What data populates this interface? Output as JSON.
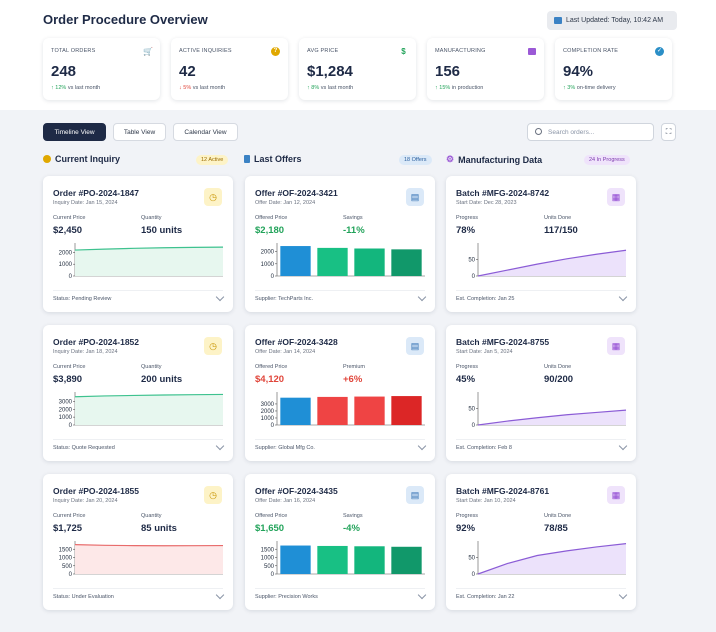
{
  "header": {
    "title": "Order Procedure Overview",
    "last_updated": "Last Updated: Today, 10:42 AM"
  },
  "kpis": [
    {
      "label": "TOTAL ORDERS",
      "value": "248",
      "change": "12%",
      "change_text": "vs last month",
      "direction": "up",
      "icon": "cart-icon",
      "icon_color": "#3b82c4"
    },
    {
      "label": "ACTIVE INQUIRIES",
      "value": "42",
      "change": "5%",
      "change_text": "vs last month",
      "direction": "down",
      "icon": "question-icon",
      "icon_color": "#e0a800"
    },
    {
      "label": "AVG PRICE",
      "value": "$1,284",
      "change": "8%",
      "change_text": "vs last month",
      "direction": "up",
      "icon": "dollar-icon",
      "icon_color": "#22a35a"
    },
    {
      "label": "MANUFACTURING",
      "value": "156",
      "change": "15%",
      "change_text": "in production",
      "direction": "up",
      "icon": "factory-icon",
      "icon_color": "#9b59d6"
    },
    {
      "label": "COMPLETION RATE",
      "value": "94%",
      "change": "3%",
      "change_text": "on-time delivery",
      "direction": "up",
      "icon": "check-circle-icon",
      "icon_color": "#2b8fc7"
    }
  ],
  "toolbar": {
    "views": [
      "Timeline View",
      "Table View",
      "Calendar View"
    ],
    "search_placeholder": "Search orders...",
    "expand_icon": "expand-icon"
  },
  "columns": [
    {
      "title": "Current Inquiry",
      "badge": "12 Active",
      "badge_bg": "#fdf3c7",
      "badge_color": "#9a6b00",
      "cards": [
        {
          "title": "Order #PO-2024-1847",
          "subtitle": "Inquiry Date: Jan 15, 2024",
          "m1_label": "Current Price",
          "m1_value": "$2,450",
          "m2_label": "Quantity",
          "m2_value": "150 units",
          "footer": "Status: Pending Review",
          "chart": {
            "type": "area",
            "ticks": [
              "2000",
              "1000",
              "0"
            ],
            "tick_values": [
              2000,
              1000,
              0
            ],
            "ymax": 2800,
            "values": [
              2200,
              2280,
              2350,
              2400,
              2430,
              2450
            ],
            "color": "#3ec28f",
            "fill": "#e7f7ef"
          }
        },
        {
          "title": "Order #PO-2024-1852",
          "subtitle": "Inquiry Date: Jan 18, 2024",
          "m1_label": "Current Price",
          "m1_value": "$3,890",
          "m2_label": "Quantity",
          "m2_value": "200 units",
          "footer": "Status: Quote Requested",
          "chart": {
            "type": "area",
            "ticks": [
              "3000",
              "2000",
              "1000",
              "0"
            ],
            "tick_values": [
              3000,
              2000,
              1000,
              0
            ],
            "ymax": 4200,
            "values": [
              3600,
              3700,
              3760,
              3820,
              3860,
              3890
            ],
            "color": "#3ec28f",
            "fill": "#e7f7ef"
          }
        },
        {
          "title": "Order #PO-2024-1855",
          "subtitle": "Inquiry Date: Jan 20, 2024",
          "m1_label": "Current Price",
          "m1_value": "$1,725",
          "m2_label": "Quantity",
          "m2_value": "85 units",
          "footer": "Status: Under Evaluation",
          "chart": {
            "type": "area",
            "ticks": [
              "1500",
              "1000",
              "500",
              "0"
            ],
            "tick_values": [
              1500,
              1000,
              500,
              0
            ],
            "ymax": 2000,
            "values": [
              1780,
              1740,
              1720,
              1710,
              1715,
              1725
            ],
            "color": "#e86b6b",
            "fill": "#fde8e8"
          }
        }
      ],
      "icon": "clock-icon",
      "icon_bg": "#fdf3c7",
      "icon_color": "#c89400"
    },
    {
      "title": "Last Offers",
      "badge": "18 Offers",
      "badge_bg": "#dbe9f8",
      "badge_color": "#2b5f9e",
      "cards": [
        {
          "title": "Offer #OF-2024-3421",
          "subtitle": "Offer Date: Jan 12, 2024",
          "m1_label": "Offered Price",
          "m1_value": "$2,180",
          "m1_color": "#22a35a",
          "m2_label": "Savings",
          "m2_value": "-11%",
          "m2_color": "#22a35a",
          "footer": "Supplier: TechParts Inc.",
          "chart": {
            "type": "bar",
            "ticks": [
              "2000",
              "1000",
              "0"
            ],
            "tick_values": [
              2000,
              1000,
              0
            ],
            "ymax": 2700,
            "values": [
              2450,
              2300,
              2250,
              2180
            ],
            "colors": [
              "#1f8fd6",
              "#18c084",
              "#13b67d",
              "#11986a"
            ]
          }
        },
        {
          "title": "Offer #OF-2024-3428",
          "subtitle": "Offer Date: Jan 14, 2024",
          "m1_label": "Offered Price",
          "m1_value": "$4,120",
          "m1_color": "#e0453a",
          "m2_label": "Premium",
          "m2_value": "+6%",
          "m2_color": "#e0453a",
          "footer": "Supplier: Global Mfg Co.",
          "chart": {
            "type": "bar",
            "ticks": [
              "3000",
              "2000",
              "1000",
              "0"
            ],
            "tick_values": [
              3000,
              2000,
              1000,
              0
            ],
            "ymax": 4700,
            "values": [
              3890,
              4000,
              4050,
              4120
            ],
            "colors": [
              "#1f8fd6",
              "#ef4444",
              "#ef4444",
              "#dc2626"
            ]
          }
        },
        {
          "title": "Offer #OF-2024-3435",
          "subtitle": "Offer Date: Jan 16, 2024",
          "m1_label": "Offered Price",
          "m1_value": "$1,650",
          "m1_color": "#22a35a",
          "m2_label": "Savings",
          "m2_value": "-4%",
          "m2_color": "#22a35a",
          "footer": "Supplier: Precision Works",
          "chart": {
            "type": "bar",
            "ticks": [
              "1500",
              "1000",
              "500",
              "0"
            ],
            "tick_values": [
              1500,
              1000,
              500,
              0
            ],
            "ymax": 2000,
            "values": [
              1725,
              1700,
              1680,
              1650
            ],
            "colors": [
              "#1f8fd6",
              "#18c084",
              "#13b67d",
              "#11986a"
            ]
          }
        }
      ],
      "icon": "document-icon",
      "icon_bg": "#dbe9f8",
      "icon_color": "#2b6cb0"
    },
    {
      "title": "Manufacturing Data",
      "badge": "24 In Progress",
      "badge_bg": "#efe3fb",
      "badge_color": "#7c3aad",
      "cards": [
        {
          "title": "Batch #MFG-2024-8742",
          "subtitle": "Start Date: Dec 28, 2023",
          "m1_label": "Progress",
          "m1_value": "78%",
          "m2_label": "Units Done",
          "m2_value": "117/150",
          "footer": "Est. Completion: Jan 25",
          "chart": {
            "type": "area",
            "ticks": [
              "50",
              "0"
            ],
            "tick_values": [
              50,
              0
            ],
            "ymax": 100,
            "values": [
              0,
              18,
              36,
              52,
              66,
              78
            ],
            "color": "#8b5cd6",
            "fill": "#ece2fb"
          }
        },
        {
          "title": "Batch #MFG-2024-8755",
          "subtitle": "Start Date: Jan 5, 2024",
          "m1_label": "Progress",
          "m1_value": "45%",
          "m2_label": "Units Done",
          "m2_value": "90/200",
          "footer": "Est. Completion: Feb 8",
          "chart": {
            "type": "area",
            "ticks": [
              "50",
              "0"
            ],
            "tick_values": [
              50,
              0
            ],
            "ymax": 100,
            "values": [
              0,
              12,
              22,
              31,
              38,
              45
            ],
            "color": "#8b5cd6",
            "fill": "#ece2fb"
          }
        },
        {
          "title": "Batch #MFG-2024-8761",
          "subtitle": "Start Date: Jan 10, 2024",
          "m1_label": "Progress",
          "m1_value": "92%",
          "m2_label": "Units Done",
          "m2_value": "78/85",
          "footer": "Est. Completion: Jan 22",
          "chart": {
            "type": "area",
            "ticks": [
              "50",
              "0"
            ],
            "tick_values": [
              50,
              0
            ],
            "ymax": 100,
            "values": [
              0,
              32,
              56,
              70,
              82,
              92
            ],
            "color": "#8b5cd6",
            "fill": "#ece2fb"
          }
        }
      ],
      "icon": "factory-icon",
      "icon_bg": "#efe3fb",
      "icon_color": "#8b3fd0"
    }
  ]
}
